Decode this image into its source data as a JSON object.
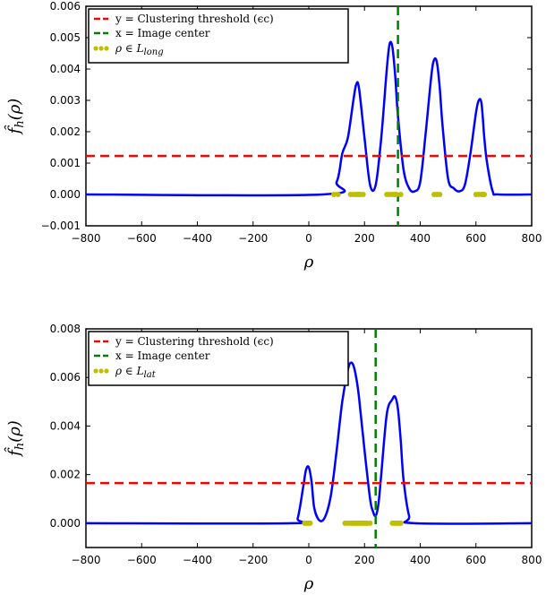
{
  "chart_data": [
    {
      "type": "line",
      "xlabel": "ρ",
      "ylabel": "f̂_h(ρ)",
      "xlim": [
        -800,
        800
      ],
      "ylim": [
        -0.001,
        0.006
      ],
      "xticks": [
        "−800",
        "−600",
        "−400",
        "−200",
        "0",
        "200",
        "400",
        "600",
        "800"
      ],
      "yticks": [
        "−0.001",
        "0.000",
        "0.001",
        "0.002",
        "0.003",
        "0.004",
        "0.005",
        "0.006"
      ],
      "legend_position": "top-left",
      "series": [
        {
          "name": "",
          "color": "#0000ff",
          "kind": "curve",
          "x": [
            -800,
            50,
            100,
            120,
            140,
            160,
            170,
            180,
            200,
            220,
            240,
            260,
            280,
            290,
            300,
            310,
            320,
            340,
            360,
            380,
            400,
            420,
            440,
            450,
            460,
            470,
            480,
            500,
            520,
            540,
            560,
            580,
            600,
            610,
            620,
            630,
            640,
            660,
            680,
            800
          ],
          "y": [
            0,
            0,
            0.0004,
            0.0013,
            0.0018,
            0.003,
            0.0035,
            0.0034,
            0.0018,
            0.0003,
            0.0003,
            0.0018,
            0.004,
            0.0048,
            0.0047,
            0.0038,
            0.0025,
            0.0008,
            0.0002,
            0.0001,
            0.0004,
            0.002,
            0.0038,
            0.0043,
            0.0042,
            0.0034,
            0.0022,
            0.0005,
            0.0002,
            0.0001,
            0.0003,
            0.0013,
            0.0026,
            0.003,
            0.0029,
            0.0018,
            0.001,
            0.0001,
            0,
            0
          ]
        }
      ],
      "threshold": {
        "label": "y = Clustering threshold (ϵc)",
        "value": 0.00123,
        "color": "#ff0000"
      },
      "center": {
        "label": "x = Image center",
        "value": 320,
        "color": "#008000"
      },
      "points": {
        "label": "ρ ∈ L",
        "label_sub": "long",
        "color": "#bfbf00",
        "y": 0,
        "x": [
          90,
          105,
          150,
          160,
          170,
          175,
          180,
          185,
          195,
          280,
          290,
          300,
          305,
          310,
          315,
          330,
          450,
          460,
          470,
          600,
          610,
          620,
          625,
          630
        ]
      }
    },
    {
      "type": "line",
      "xlabel": "ρ",
      "ylabel": "f̂_h(ρ)",
      "xlim": [
        -800,
        800
      ],
      "ylim": [
        -0.001,
        0.008
      ],
      "xticks": [
        "−800",
        "−600",
        "−400",
        "−200",
        "0",
        "200",
        "400",
        "600",
        "800"
      ],
      "yticks": [
        "0.000",
        "0.002",
        "0.004",
        "0.006",
        "0.008"
      ],
      "legend_position": "top-left",
      "series": [
        {
          "name": "",
          "color": "#0000ff",
          "kind": "curve",
          "x": [
            -800,
            -60,
            -40,
            -20,
            -10,
            0,
            10,
            20,
            40,
            60,
            80,
            100,
            120,
            140,
            150,
            160,
            170,
            180,
            200,
            220,
            230,
            240,
            250,
            260,
            280,
            300,
            310,
            320,
            330,
            340,
            360,
            380,
            800
          ],
          "y": [
            0,
            0,
            0.0002,
            0.0015,
            0.0022,
            0.0023,
            0.0017,
            0.0006,
            0.0001,
            0.0003,
            0.0012,
            0.003,
            0.005,
            0.0063,
            0.0066,
            0.0065,
            0.006,
            0.0052,
            0.003,
            0.001,
            0.0005,
            0.0003,
            0.0008,
            0.002,
            0.0045,
            0.0051,
            0.0052,
            0.0047,
            0.0034,
            0.0018,
            0.0003,
            0,
            0
          ]
        }
      ],
      "threshold": {
        "label": "y = Clustering threshold (ϵc)",
        "value": 0.00165,
        "color": "#ff0000"
      },
      "center": {
        "label": "x = Image center",
        "value": 240,
        "color": "#008000"
      },
      "points": {
        "label": "ρ ∈ L",
        "label_sub": "lat",
        "color": "#bfbf00",
        "y": 0,
        "x": [
          -15,
          -10,
          -5,
          0,
          5,
          130,
          140,
          150,
          155,
          160,
          165,
          170,
          175,
          180,
          185,
          190,
          195,
          200,
          205,
          210,
          220,
          300,
          305,
          310,
          315,
          320,
          325,
          330
        ]
      }
    }
  ]
}
